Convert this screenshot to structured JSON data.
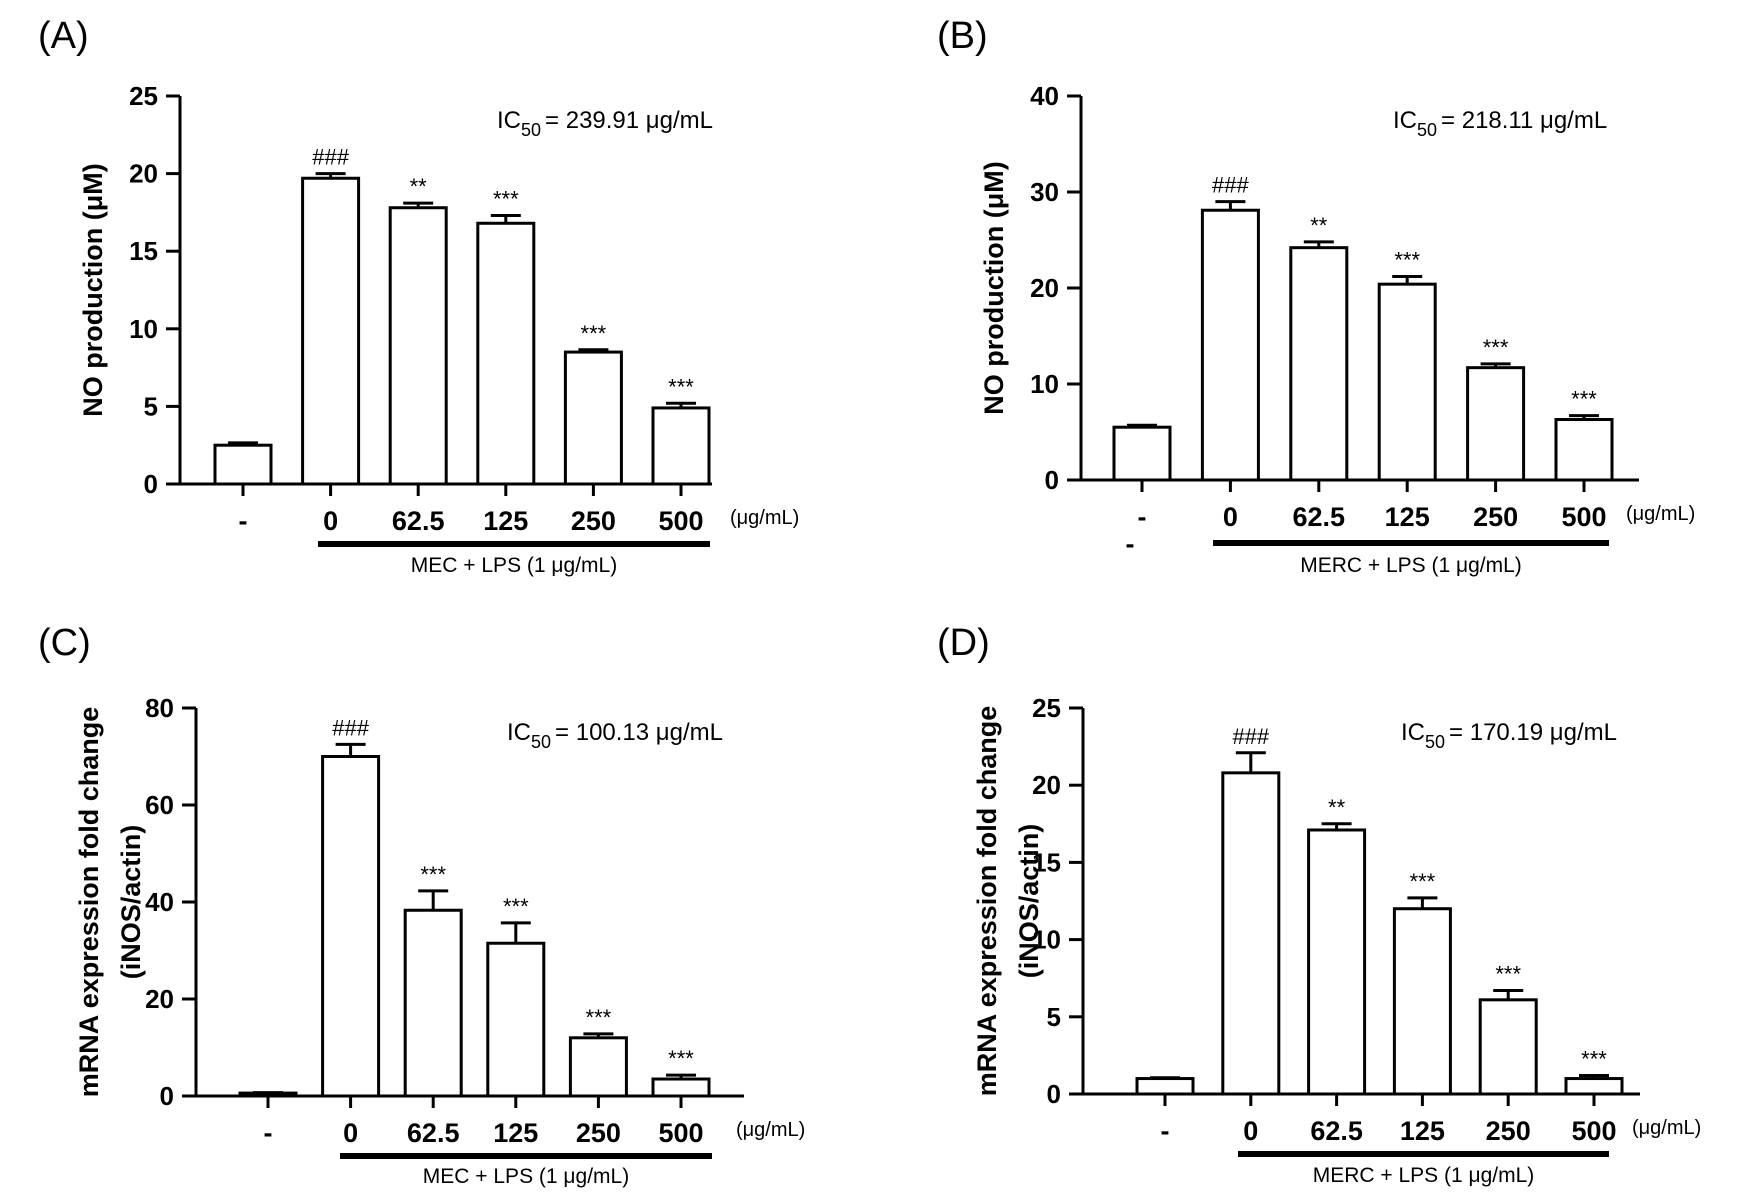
{
  "chart_data": [
    {
      "id": "A",
      "type": "bar",
      "panel_label": "(A)",
      "categories": [
        "-",
        "0",
        "62.5",
        "125",
        "250",
        "500"
      ],
      "values": [
        2.5,
        19.7,
        17.8,
        16.8,
        8.5,
        4.9
      ],
      "errors": [
        0.15,
        0.3,
        0.3,
        0.5,
        0.15,
        0.3
      ],
      "annotations": [
        "",
        "###",
        "**",
        "***",
        "***",
        "***"
      ],
      "ylabel": "NO production (μM)",
      "ylim": [
        0,
        25
      ],
      "yticks": [
        0,
        5,
        10,
        15,
        20,
        25
      ],
      "unit_label": "(μg/mL)",
      "treatment_label": "MEC  + LPS (1 μg/mL)",
      "ic50_prefix": "IC",
      "ic50_sub": "50",
      "ic50_value": "= 239.91 μg/mL",
      "extra_labels": []
    },
    {
      "id": "B",
      "type": "bar",
      "panel_label": "(B)",
      "categories": [
        "-",
        "0",
        "62.5",
        "125",
        "250",
        "500"
      ],
      "values": [
        5.5,
        28.1,
        24.2,
        20.4,
        11.7,
        6.3
      ],
      "errors": [
        0.2,
        0.9,
        0.6,
        0.8,
        0.4,
        0.4
      ],
      "annotations": [
        "",
        "###",
        "**",
        "***",
        "***",
        "***"
      ],
      "ylabel": "NO production (μM)",
      "ylim": [
        0,
        40
      ],
      "yticks": [
        0,
        10,
        20,
        30,
        40
      ],
      "unit_label": "(μg/mL)",
      "treatment_label": "MERC + LPS (1 μg/mL)",
      "ic50_prefix": "IC",
      "ic50_sub": "50",
      "ic50_value": "= 218.11 μg/mL",
      "extra_labels": [
        "-"
      ]
    },
    {
      "id": "C",
      "type": "bar",
      "panel_label": "(C)",
      "categories": [
        "-",
        "0",
        "62.5",
        "125",
        "250",
        "500"
      ],
      "values": [
        0.6,
        70.0,
        38.3,
        31.5,
        12.0,
        3.5
      ],
      "errors": [
        0.1,
        2.5,
        4.0,
        4.2,
        0.8,
        0.8
      ],
      "annotations": [
        "",
        "###",
        "***",
        "***",
        "***",
        "***"
      ],
      "ylabel": "mRNA expression fold change",
      "ylabel2": "(iNOS/actin)",
      "ylim": [
        0,
        80
      ],
      "yticks": [
        0,
        20,
        40,
        60,
        80
      ],
      "unit_label": "(μg/mL)",
      "treatment_label": "MEC  + LPS (1 μg/mL)",
      "ic50_prefix": "IC",
      "ic50_sub": "50",
      "ic50_value": "= 100.13 μg/mL",
      "extra_labels": []
    },
    {
      "id": "D",
      "type": "bar",
      "panel_label": "(D)",
      "categories": [
        "-",
        "0",
        "62.5",
        "125",
        "250",
        "500"
      ],
      "values": [
        1.0,
        20.8,
        17.1,
        12.0,
        6.1,
        1.0
      ],
      "errors": [
        0.05,
        1.3,
        0.4,
        0.7,
        0.6,
        0.2
      ],
      "annotations": [
        "",
        "###",
        "**",
        "***",
        "***",
        "***"
      ],
      "ylabel": "mRNA expression fold change",
      "ylabel2": "(iNOS/actin)",
      "ylim": [
        0,
        25
      ],
      "yticks": [
        0,
        5,
        10,
        15,
        20,
        25
      ],
      "unit_label": "(μg/mL)",
      "treatment_label": "MERC + LPS (1 μg/mL)",
      "ic50_prefix": "IC",
      "ic50_sub": "50",
      "ic50_value": "= 170.19 μg/mL",
      "extra_labels": []
    }
  ]
}
